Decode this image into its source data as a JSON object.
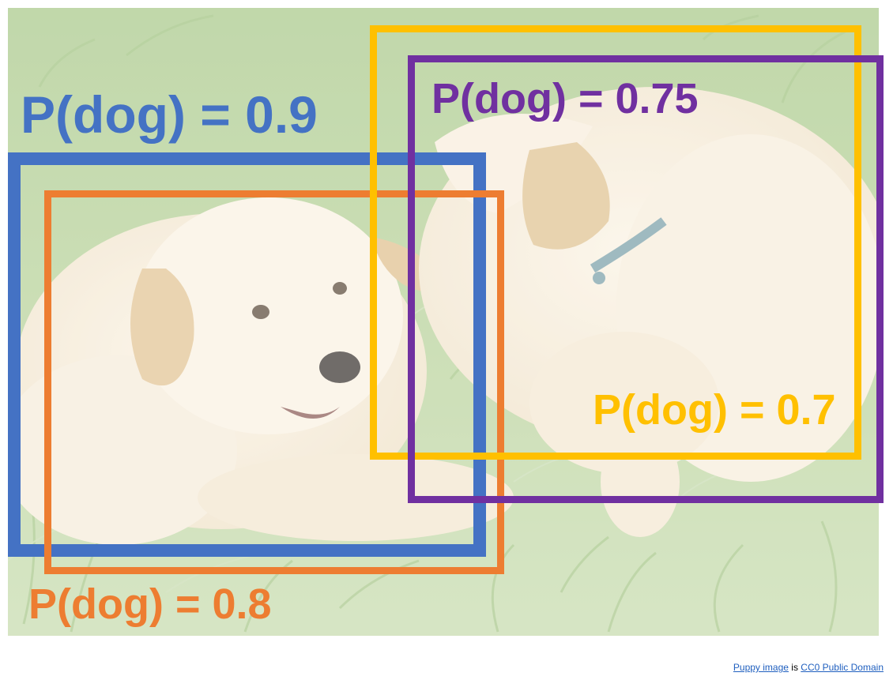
{
  "title": "",
  "detections": [
    {
      "id": "blue",
      "label": "P(dog) = 0.9",
      "color": "#4472c4"
    },
    {
      "id": "orange",
      "label": "P(dog) = 0.8",
      "color": "#ed7d31"
    },
    {
      "id": "yellow",
      "label": "P(dog) = 0.7",
      "color": "#ffc000"
    },
    {
      "id": "purple",
      "label": "P(dog) = 0.75",
      "color": "#7030a0"
    }
  ],
  "credit": {
    "image_link": "Puppy image",
    "middle": " is ",
    "license_link": "CC0 Public Domain"
  }
}
